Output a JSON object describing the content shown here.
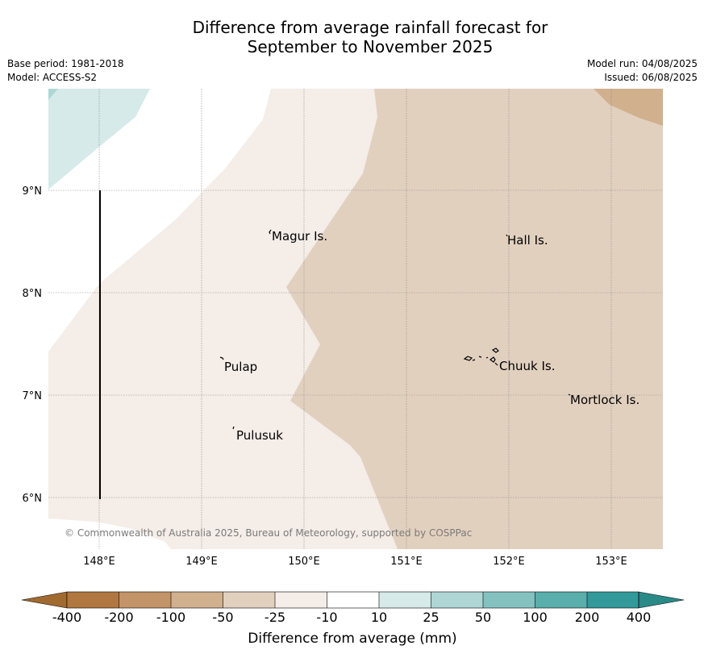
{
  "title_line1": "Difference from average rainfall forecast for",
  "title_line2": "September to November 2025",
  "meta_left": [
    "Base period: 1981-2018",
    "Model: ACCESS-S2"
  ],
  "meta_right": [
    "Model run: 04/08/2025",
    "Issued: 06/08/2025"
  ],
  "map": {
    "lon_ticks": [
      "148°E",
      "149°E",
      "150°E",
      "151°E",
      "152°E",
      "153°E"
    ],
    "lat_ticks": [
      "9°N",
      "8°N",
      "7°N",
      "6°N"
    ],
    "places": [
      "Magur Is.",
      "Hall Is.",
      "Pulap",
      "Chuuk Is.",
      "Mortlock Is.",
      "Pulusuk"
    ],
    "copyright": "© Commonwealth of Australia 2025, Bureau of Meteorology, supported by COSPPac"
  },
  "colorbar": {
    "title": "Difference from average (mm)",
    "labels": [
      "-400",
      "-200",
      "-100",
      "-50",
      "-25",
      "-10",
      "10",
      "25",
      "50",
      "100",
      "200",
      "400"
    ],
    "colors": {
      "under": "#a06a30",
      "bins": [
        "#b07840",
        "#c29468",
        "#d1b08e",
        "#e2d0bf",
        "#f4ede8",
        "#ffffff",
        "#d5eae9",
        "#afd6d5",
        "#84c2c0",
        "#5aaeac",
        "#33999a"
      ],
      "over": "#2a8a88"
    }
  }
}
